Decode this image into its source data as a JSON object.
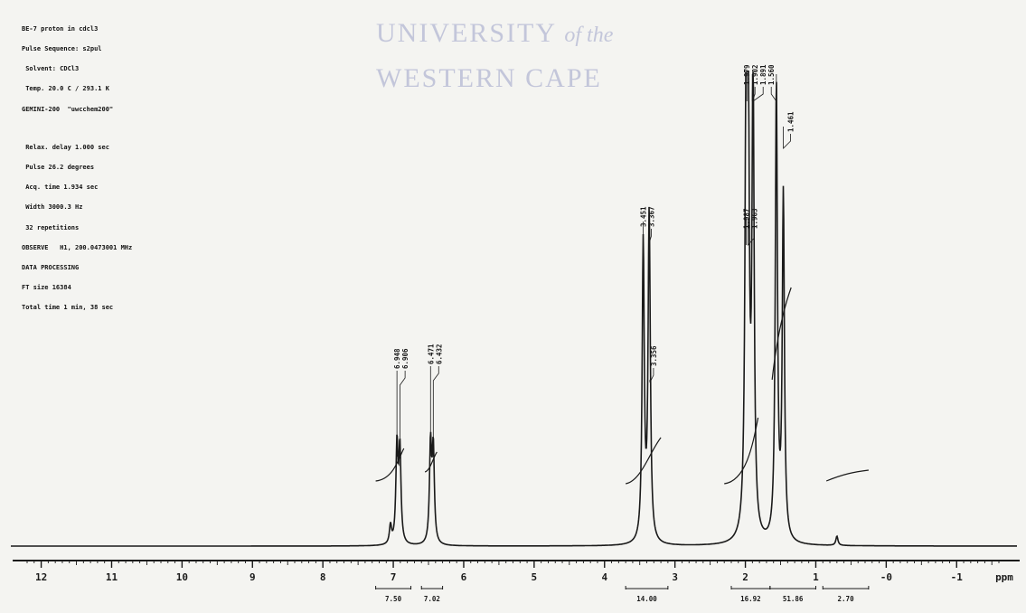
{
  "header_lines": [
    "BE-7 proton in cdcl3",
    "",
    "Pulse Sequence: s2pul",
    " Solvent: CDCl3",
    " Temp. 20.0 C / 293.1 K",
    "GEMINI-200  \"uwcchem200\"",
    "",
    " Relax. delay 1.000 sec",
    " Pulse 26.2 degrees",
    " Acq. time 1.934 sec",
    " Width 3000.3 Hz",
    " 32 repetitions",
    "OBSERVE   H1, 200.0473001 MHz",
    "DATA PROCESSING",
    "FT size 16384",
    "Total time 1 min, 38 sec"
  ],
  "watermark": {
    "line1_main": "UNIVERSITY",
    "line1_italic": "of the",
    "line2": "WESTERN CAPE"
  },
  "chart_data": {
    "type": "line",
    "title": "",
    "xlabel": "ppm",
    "ylabel": "",
    "x_axis_reversed": true,
    "xlim": [
      12.2,
      -1.6
    ],
    "x_ticks": [
      12,
      11,
      10,
      9,
      8,
      7,
      6,
      5,
      4,
      3,
      2,
      1,
      0,
      -1
    ],
    "x_tick_labels": [
      "12",
      "11",
      "10",
      "9",
      "8",
      "7",
      "6",
      "5",
      "4",
      "3",
      "2",
      "1",
      "-0",
      "-1"
    ],
    "y_relative_range": [
      0,
      1
    ],
    "grid": false,
    "peaks": [
      {
        "ppm": 7.04,
        "height": 0.04
      },
      {
        "ppm": 6.948,
        "height": 0.21
      },
      {
        "ppm": 6.906,
        "height": 0.2
      },
      {
        "ppm": 6.471,
        "height": 0.21
      },
      {
        "ppm": 6.432,
        "height": 0.2
      },
      {
        "ppm": 3.451,
        "height": 0.64
      },
      {
        "ppm": 3.367,
        "height": 0.64
      },
      {
        "ppm": 3.356,
        "height": 0.09
      },
      {
        "ppm": 1.987,
        "height": 1.0
      },
      {
        "ppm": 1.963,
        "height": 0.98
      },
      {
        "ppm": 1.891,
        "height": 0.99
      },
      {
        "ppm": 1.56,
        "height": 0.98
      },
      {
        "ppm": 1.461,
        "height": 0.74
      },
      {
        "ppm": 0.7,
        "height": 0.02
      }
    ],
    "peak_labels": [
      {
        "ppm": 6.948,
        "text": "6.948"
      },
      {
        "ppm": 6.906,
        "text": "6.906"
      },
      {
        "ppm": 6.471,
        "text": "6.471"
      },
      {
        "ppm": 6.432,
        "text": "6.432"
      },
      {
        "ppm": 3.451,
        "text": "3.451"
      },
      {
        "ppm": 3.367,
        "text": "3.367"
      },
      {
        "ppm": 3.356,
        "text": "3.356"
      },
      {
        "ppm": 1.987,
        "text": "1.987"
      },
      {
        "ppm": 1.963,
        "text": "1.963"
      },
      {
        "ppm": 1.979,
        "text": "1.979"
      },
      {
        "ppm": 1.902,
        "text": "1.902"
      },
      {
        "ppm": 1.891,
        "text": "1.891"
      },
      {
        "ppm": 1.56,
        "text": "1.560"
      },
      {
        "ppm": 1.461,
        "text": "1.461"
      }
    ],
    "integrals": [
      {
        "from": 7.25,
        "to": 6.75,
        "value": "7.50"
      },
      {
        "from": 6.6,
        "to": 6.3,
        "value": "7.02"
      },
      {
        "from": 3.7,
        "to": 3.1,
        "value": "14.00"
      },
      {
        "from": 2.2,
        "to": 1.65,
        "value": "16.92"
      },
      {
        "from": 1.65,
        "to": 1.0,
        "value": "51.86"
      },
      {
        "from": 0.9,
        "to": 0.25,
        "value": "2.70"
      }
    ]
  }
}
